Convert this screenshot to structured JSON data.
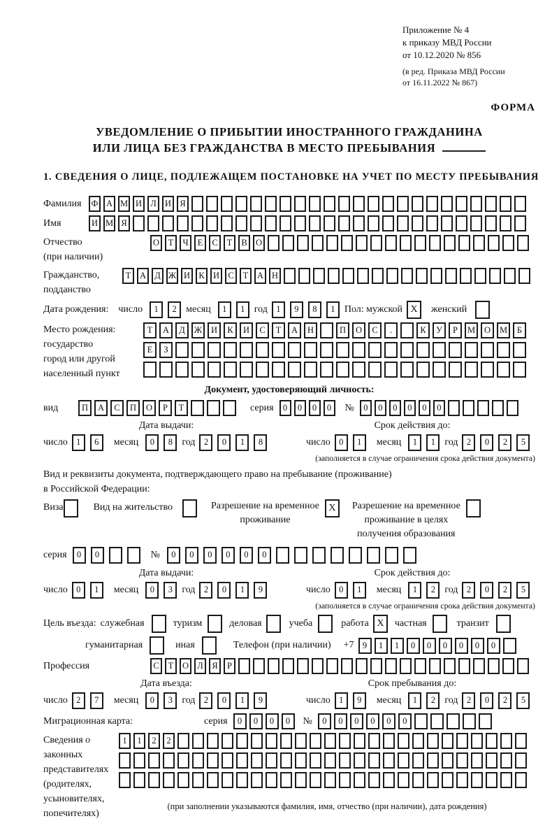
{
  "header": {
    "appendix_line1": "Приложение № 4",
    "appendix_line2": "к приказу МВД России",
    "appendix_line3": "от 10.12.2020 № 856",
    "amendment_line1": "(в ред. Приказа МВД России",
    "amendment_line2": "от 16.11.2022 № 867)",
    "forma": "ФОРМА"
  },
  "title": {
    "line1": "УВЕДОМЛЕНИЕ О ПРИБЫТИИ ИНОСТРАННОГО ГРАЖДАНИНА",
    "line2": "ИЛИ ЛИЦА БЕЗ ГРАЖДАНСТВА В МЕСТО ПРЕБЫВАНИЯ"
  },
  "section1": {
    "heading": "1. СВЕДЕНИЯ О ЛИЦЕ, ПОДЛЕЖАЩЕМ ПОСТАНОВКЕ НА УЧЕТ ПО МЕСТУ ПРЕБЫВАНИЯ"
  },
  "labels": {
    "surname": "Фамилия",
    "name": "Имя",
    "patronymic": "Отчество",
    "patronymic_note": "(при наличии)",
    "citizenship1": "Гражданство,",
    "citizenship2": "подданство",
    "birth_date": "Дата рождения:",
    "day": "число",
    "month": "месяц",
    "year": "год",
    "sex": "Пол: мужской",
    "female": "женский",
    "birthplace1": "Место рождения:",
    "birthplace2": "государство",
    "birthplace3": "город или другой",
    "birthplace4": "населенный пункт",
    "identity_doc": "Документ, удостоверяющий личность:",
    "doc_type": "вид",
    "series": "серия",
    "number": "№",
    "issue_date": "Дата выдачи:",
    "valid_until": "Срок действия до:",
    "valid_note": "(заполняется в случае ограничения срока действия документа)",
    "residence1": "Вид и реквизиты документа, подтверждающего право на пребывание (проживание)",
    "residence2": "в Российской Федерации:",
    "visa": "Виза",
    "residence_permit": "Вид на жительство",
    "temp1": "Разрешение на временное",
    "temp2": "проживание",
    "edu1": "Разрешение на временное",
    "edu2": "проживание в целях",
    "edu3": "получения образования",
    "purpose": "Цель въезда:",
    "p_official": "служебная",
    "p_tourism": "туризм",
    "p_business": "деловая",
    "p_study": "учеба",
    "p_work": "работа",
    "p_private": "частная",
    "p_transit": "транзит",
    "p_humanitarian": "гуманитарная",
    "p_other": "иная",
    "phone": "Телефон (при наличии)",
    "phone_prefix": "+7",
    "profession": "Профессия",
    "entry_date": "Дата въезда:",
    "stay_until": "Срок пребывания до:",
    "mig_card": "Миграционная карта:",
    "rep1": "Сведения о",
    "rep2": "законных",
    "rep3": "представителях",
    "rep4": "(родителях,",
    "rep5": "усыновителях,",
    "rep6": "попечителях)",
    "rep_note": "(при заполнении указываются фамилия, имя, отчество (при наличии), дата рождения)"
  },
  "boxes": {
    "surname": {
      "len": 30,
      "text": "ФАМИЛИЯ"
    },
    "name": {
      "len": 30,
      "text": "ИМЯ"
    },
    "patronymic": {
      "len": 26,
      "text": "ОТЧЕСТВО"
    },
    "citizenship": {
      "len": 28,
      "text": "ТАДЖИКИСТАН"
    },
    "birth_day": {
      "len": 2,
      "text": "12"
    },
    "birth_month": {
      "len": 2,
      "text": "11"
    },
    "birth_year": {
      "len": 4,
      "text": "1981"
    },
    "sex_male": {
      "len": 1,
      "text": "X"
    },
    "sex_female": {
      "len": 1,
      "text": ""
    },
    "birthplace_row1": {
      "len": 24,
      "text": "ТАДЖИКИСТАН ПОС. КУРМОМБ"
    },
    "birthplace_row2": {
      "len": 24,
      "text": "ЕЗ"
    },
    "birthplace_row3": {
      "len": 24,
      "text": ""
    },
    "doc_type": {
      "len": 10,
      "text": "ПАСПОРТ"
    },
    "doc_series": {
      "len": 4,
      "text": "0000"
    },
    "doc_number": {
      "len": 11,
      "text": "000000"
    },
    "doc_issue_day": {
      "len": 2,
      "text": "16"
    },
    "doc_issue_month": {
      "len": 2,
      "text": "08"
    },
    "doc_issue_year": {
      "len": 4,
      "text": "2018"
    },
    "doc_valid_day": {
      "len": 2,
      "text": "01"
    },
    "doc_valid_month": {
      "len": 2,
      "text": "11"
    },
    "doc_valid_year": {
      "len": 4,
      "text": "2025"
    },
    "visa_cb": {
      "len": 1,
      "text": ""
    },
    "residence_cb": {
      "len": 1,
      "text": ""
    },
    "temp_cb": {
      "len": 1,
      "text": "X"
    },
    "edu_cb": {
      "len": 1,
      "text": ""
    },
    "permit_series": {
      "len": 4,
      "text": "00"
    },
    "permit_number": {
      "len": 14,
      "text": "000000"
    },
    "permit_issue_day": {
      "len": 2,
      "text": "01"
    },
    "permit_issue_month": {
      "len": 2,
      "text": "03"
    },
    "permit_issue_year": {
      "len": 4,
      "text": "2019"
    },
    "permit_valid_day": {
      "len": 2,
      "text": "01"
    },
    "permit_valid_month": {
      "len": 2,
      "text": "12"
    },
    "permit_valid_year": {
      "len": 4,
      "text": "2025"
    },
    "p_official_cb": {
      "len": 1,
      "text": ""
    },
    "p_tourism_cb": {
      "len": 1,
      "text": ""
    },
    "p_business_cb": {
      "len": 1,
      "text": ""
    },
    "p_study_cb": {
      "len": 1,
      "text": ""
    },
    "p_work_cb": {
      "len": 1,
      "text": "X"
    },
    "p_private_cb": {
      "len": 1,
      "text": ""
    },
    "p_transit_cb": {
      "len": 1,
      "text": ""
    },
    "p_humanitarian_cb": {
      "len": 1,
      "text": ""
    },
    "p_other_cb": {
      "len": 1,
      "text": ""
    },
    "phone": {
      "len": 10,
      "text": "911000000"
    },
    "profession": {
      "len": 26,
      "text": "СТОЛЯР"
    },
    "entry_day": {
      "len": 2,
      "text": "27"
    },
    "entry_month": {
      "len": 2,
      "text": "03"
    },
    "entry_year": {
      "len": 4,
      "text": "2019"
    },
    "stay_day": {
      "len": 2,
      "text": "19"
    },
    "stay_month": {
      "len": 2,
      "text": "12"
    },
    "stay_year": {
      "len": 4,
      "text": "2025"
    },
    "mig_series": {
      "len": 4,
      "text": "0000"
    },
    "mig_number": {
      "len": 11,
      "text": "000000"
    },
    "rep_row1": {
      "len": 28,
      "text": "1122"
    },
    "rep_row2": {
      "len": 28,
      "text": ""
    },
    "rep_row3": {
      "len": 28,
      "text": ""
    }
  }
}
